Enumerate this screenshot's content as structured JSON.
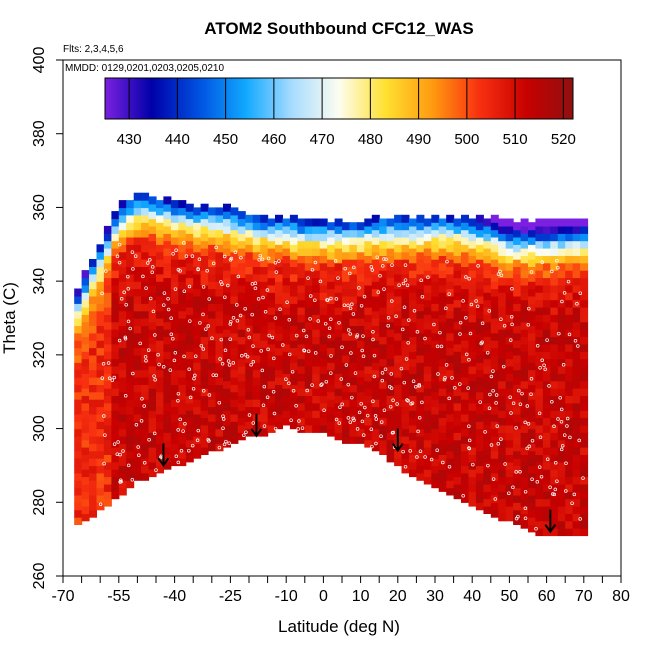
{
  "chart_data": {
    "type": "heatmap",
    "title": "ATOM2 Southbound CFC12_WAS",
    "notes": [
      "Flts: 2,3,4,5,6",
      "MMDD: 0129,0201,0203,0205,0210"
    ],
    "xlabel": "Latitude (deg N)",
    "ylabel": "Theta (C)",
    "xlim": [
      -70,
      80
    ],
    "ylim": [
      260,
      400
    ],
    "x_ticks": [
      -70,
      -55,
      -40,
      -25,
      -10,
      0,
      10,
      20,
      30,
      40,
      50,
      60,
      70,
      80
    ],
    "y_ticks": [
      260,
      280,
      300,
      320,
      340,
      360,
      380,
      400
    ],
    "colorbar": {
      "range": [
        425,
        522
      ],
      "ticks": [
        430,
        440,
        450,
        460,
        470,
        480,
        490,
        500,
        510,
        520
      ],
      "colors": [
        "#7b20e0",
        "#0000a8",
        "#0050e0",
        "#10a8ff",
        "#a8dcff",
        "#fdfdf0",
        "#ffe030",
        "#ff9a10",
        "#f83010",
        "#c80000",
        "#901010"
      ]
    },
    "field_description_levels": {
      "latitude": [
        -67,
        -60,
        -55,
        -50,
        -45,
        -40,
        -35,
        -30,
        -25,
        -20,
        -15,
        -10,
        -5,
        0,
        5,
        10,
        15,
        20,
        25,
        30,
        35,
        40,
        45,
        50,
        55,
        60,
        65,
        70
      ],
      "floor_theta": [
        274,
        278,
        282,
        286,
        288,
        290,
        292,
        294,
        296,
        298,
        299,
        301,
        299,
        299,
        297,
        296,
        294,
        290,
        287,
        284,
        282,
        279,
        277,
        275,
        273,
        271,
        271,
        271
      ],
      "top_theta": [
        335,
        350,
        360,
        363,
        362,
        361,
        360,
        360,
        359,
        358,
        357,
        357,
        356,
        356,
        356,
        356,
        357,
        357,
        357,
        357,
        357,
        357,
        357,
        356,
        356,
        356,
        356,
        357
      ]
    },
    "arrows_latitude": [
      -43,
      -18,
      20,
      61
    ],
    "arrows_theta_top": [
      296,
      304,
      300,
      278
    ]
  }
}
